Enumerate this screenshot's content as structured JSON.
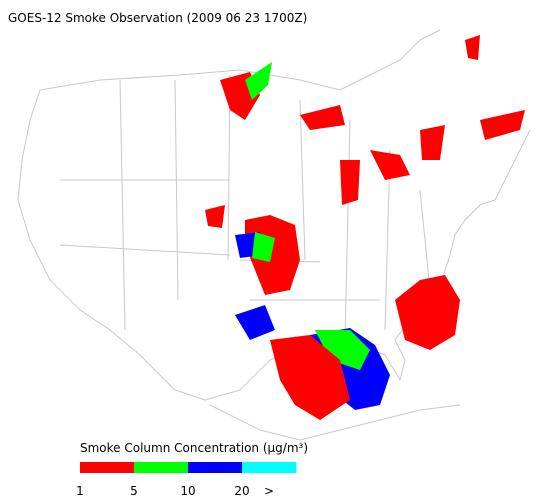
{
  "title": "GOES-12 Smoke Observation (2009 06 23  1700Z)",
  "legend": {
    "label": "Smoke Column Concentration (μg/m³)",
    "colors": [
      "#ff0000",
      "#00ff00",
      "#0000ff",
      "#00ffff"
    ],
    "ticks": [
      "1",
      "5",
      "10",
      "20",
      ">"
    ]
  }
}
